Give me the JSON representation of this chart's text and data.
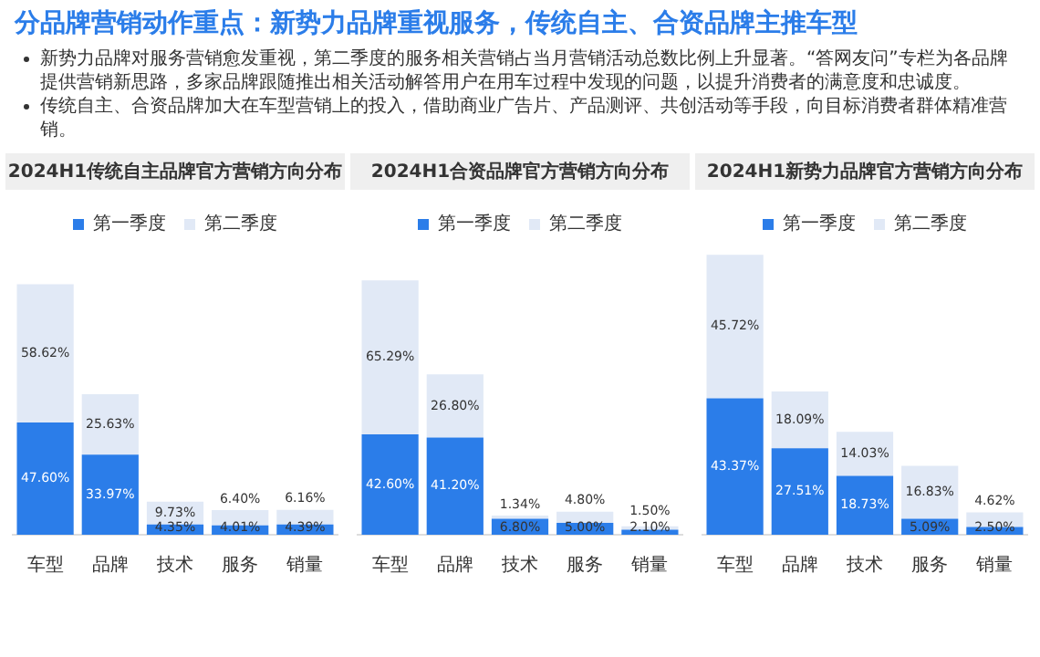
{
  "chart_data": [
    {
      "type": "other",
      "title": "分品牌营销动作重点：新势力品牌重视服务，传统自主、合资品牌主推车型",
      "annotations": [
        "新势力品牌对服务营销愈发重视，第二季度的服务相关营销占当月营销活动总数比例上升显著。“答网友问”专栏为各品牌提供营销新思路，多家品牌跟随推出相关活动解答用户在用车过程中发现的问题，以提升消费者的满意度和忠诚度。",
        "传统自主、合资品牌加大在车型营销上的投入，借助商业广告片、产品测评、共创活动等手段，向目标消费者群体精准营销。"
      ]
    },
    {
      "type": "bar",
      "stacked": true,
      "legend": "top",
      "grid": false,
      "title": "2024H1传统自主品牌官方营销方向分布",
      "categories": [
        "车型",
        "品牌",
        "技术",
        "服务",
        "销量"
      ],
      "series": [
        {
          "name": "第一季度",
          "color": "#2b7de9",
          "values": [
            47.6,
            33.97,
            4.35,
            4.01,
            4.39
          ],
          "value_labels": [
            "47.60%",
            "33.97%",
            "4.35%",
            "4.01%",
            "4.39%"
          ]
        },
        {
          "name": "第二季度",
          "color": "#e1e9f6",
          "values": [
            58.62,
            25.63,
            9.73,
            6.4,
            6.16
          ],
          "value_labels": [
            "58.62%",
            "25.63%",
            "9.73%",
            "6.40%",
            "6.16%"
          ]
        }
      ]
    },
    {
      "type": "bar",
      "stacked": true,
      "legend": "top",
      "grid": false,
      "title": "2024H1合资品牌官方营销方向分布",
      "categories": [
        "车型",
        "品牌",
        "技术",
        "服务",
        "销量"
      ],
      "series": [
        {
          "name": "第一季度",
          "color": "#2b7de9",
          "values": [
            42.6,
            41.2,
            6.8,
            5.0,
            2.1
          ],
          "value_labels": [
            "42.60%",
            "41.20%",
            "6.80%",
            "5.00%",
            "2.10%"
          ]
        },
        {
          "name": "第二季度",
          "color": "#e1e9f6",
          "values": [
            65.29,
            26.8,
            1.34,
            4.8,
            1.5
          ],
          "value_labels": [
            "65.29%",
            "26.80%",
            "1.34%",
            "4.80%",
            "1.50%"
          ]
        }
      ]
    },
    {
      "type": "bar",
      "stacked": true,
      "legend": "top",
      "grid": false,
      "title": "2024H1新势力品牌官方营销方向分布",
      "categories": [
        "车型",
        "品牌",
        "技术",
        "服务",
        "销量"
      ],
      "series": [
        {
          "name": "第一季度",
          "color": "#2b7de9",
          "values": [
            43.37,
            27.51,
            18.73,
            5.09,
            2.5
          ],
          "value_labels": [
            "43.37%",
            "27.51%",
            "18.73%",
            "5.09%",
            "2.50%"
          ]
        },
        {
          "name": "第二季度",
          "color": "#e1e9f6",
          "values": [
            45.72,
            18.09,
            14.03,
            16.83,
            4.62
          ],
          "value_labels": [
            "45.72%",
            "18.09%",
            "14.03%",
            "16.83%",
            "4.62%"
          ]
        }
      ]
    }
  ]
}
